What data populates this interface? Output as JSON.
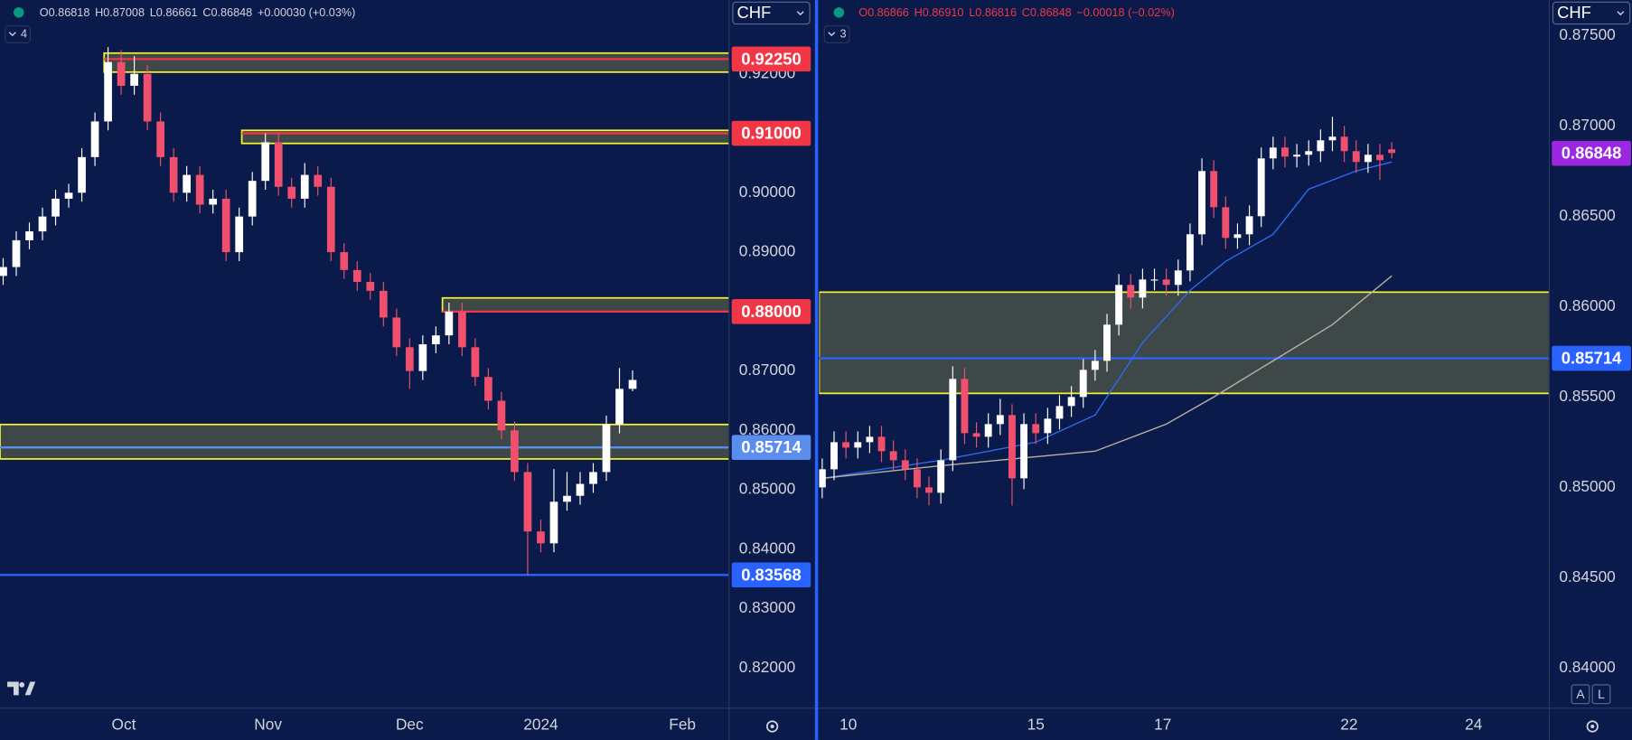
{
  "chart_data": [
    {
      "type": "candlestick",
      "currency": "CHF",
      "legend_count": 4,
      "legend": [
        "O0.86818",
        "H0.87008",
        "L0.86661",
        "C0.86848",
        "+0.00030 (+0.03%)"
      ],
      "legend_color": "#d1d4dc",
      "up_color": "#ffffff",
      "down_color": "#f0506e",
      "xlim": [
        -0.24,
        55.32
      ],
      "ylim": [
        0.81334,
        0.93243
      ],
      "xticks": [
        {
          "value": 9.2,
          "label": "Oct"
        },
        {
          "value": 20.2,
          "label": "Nov"
        },
        {
          "value": 31.0,
          "label": "Dec"
        },
        {
          "value": 41.0,
          "label": "2024"
        },
        {
          "value": 51.8,
          "label": "Feb"
        }
      ],
      "yticks": [
        {
          "value": 0.92,
          "label": "0.92000"
        },
        {
          "value": 0.9,
          "label": "0.90000"
        },
        {
          "value": 0.89,
          "label": "0.89000"
        },
        {
          "value": 0.87,
          "label": "0.87000"
        },
        {
          "value": 0.86,
          "label": "0.86000"
        },
        {
          "value": 0.85,
          "label": "0.85000"
        },
        {
          "value": 0.84,
          "label": "0.84000"
        },
        {
          "value": 0.83,
          "label": "0.83000"
        },
        {
          "value": 0.82,
          "label": "0.82000"
        }
      ],
      "zone_color": "#f5f52a",
      "zones": [
        {
          "top": 0.9235,
          "bottom": 0.9203,
          "start": 7.7
        },
        {
          "top": 0.9105,
          "bottom": 0.9083,
          "start": 18.2
        },
        {
          "top": 0.8823,
          "bottom": 0.88,
          "start": 33.5
        },
        {
          "top": 0.861,
          "bottom": 0.8552
        }
      ],
      "levels": [
        {
          "value": 0.9225,
          "label": "0.92250",
          "color": "#f23645",
          "start": 7.7,
          "line": true
        },
        {
          "value": 0.91,
          "label": "0.91000",
          "color": "#f23645",
          "start": 18.2,
          "line": true
        },
        {
          "value": 0.88,
          "label": "0.88000",
          "color": "#f23645",
          "start": 33.5,
          "line": true
        },
        {
          "value": 0.85714,
          "label": "0.85714",
          "color": "#5b8def",
          "line": true
        },
        {
          "value": 0.83568,
          "label": "0.83568",
          "color": "#2962ff",
          "line": true
        }
      ],
      "ohlc": [
        [
          0.886,
          0.889,
          0.8845,
          0.8875
        ],
        [
          0.8875,
          0.8935,
          0.886,
          0.892
        ],
        [
          0.892,
          0.895,
          0.8905,
          0.8935
        ],
        [
          0.8935,
          0.8975,
          0.892,
          0.896
        ],
        [
          0.896,
          0.9005,
          0.8945,
          0.899
        ],
        [
          0.899,
          0.9015,
          0.8975,
          0.9
        ],
        [
          0.9,
          0.9075,
          0.8985,
          0.906
        ],
        [
          0.906,
          0.9135,
          0.9045,
          0.912
        ],
        [
          0.912,
          0.9245,
          0.9105,
          0.922
        ],
        [
          0.922,
          0.924,
          0.9165,
          0.918
        ],
        [
          0.918,
          0.923,
          0.9165,
          0.92
        ],
        [
          0.92,
          0.9215,
          0.9105,
          0.912
        ],
        [
          0.912,
          0.9135,
          0.9045,
          0.906
        ],
        [
          0.906,
          0.9075,
          0.8985,
          0.9
        ],
        [
          0.9,
          0.9045,
          0.8985,
          0.903
        ],
        [
          0.903,
          0.9045,
          0.8965,
          0.898
        ],
        [
          0.898,
          0.9005,
          0.8965,
          0.899
        ],
        [
          0.899,
          0.9005,
          0.8885,
          0.89
        ],
        [
          0.89,
          0.8975,
          0.8885,
          0.896
        ],
        [
          0.896,
          0.9035,
          0.8945,
          0.902
        ],
        [
          0.902,
          0.91,
          0.9005,
          0.9085
        ],
        [
          0.9085,
          0.91,
          0.8995,
          0.901
        ],
        [
          0.901,
          0.9025,
          0.8975,
          0.899
        ],
        [
          0.899,
          0.905,
          0.8975,
          0.903
        ],
        [
          0.903,
          0.9045,
          0.8995,
          0.901
        ],
        [
          0.901,
          0.9025,
          0.8885,
          0.89
        ],
        [
          0.89,
          0.8915,
          0.8855,
          0.887
        ],
        [
          0.887,
          0.8885,
          0.8835,
          0.885
        ],
        [
          0.885,
          0.8865,
          0.882,
          0.8835
        ],
        [
          0.8835,
          0.885,
          0.8775,
          0.879
        ],
        [
          0.879,
          0.8805,
          0.8725,
          0.874
        ],
        [
          0.874,
          0.8755,
          0.867,
          0.87
        ],
        [
          0.87,
          0.876,
          0.8685,
          0.8745
        ],
        [
          0.8745,
          0.8775,
          0.873,
          0.876
        ],
        [
          0.876,
          0.8815,
          0.8745,
          0.88
        ],
        [
          0.88,
          0.8815,
          0.8725,
          0.874
        ],
        [
          0.874,
          0.8755,
          0.8675,
          0.869
        ],
        [
          0.869,
          0.8705,
          0.8635,
          0.865
        ],
        [
          0.865,
          0.8665,
          0.8585,
          0.86
        ],
        [
          0.86,
          0.8615,
          0.8515,
          0.853
        ],
        [
          0.853,
          0.8545,
          0.8357,
          0.843
        ],
        [
          0.843,
          0.845,
          0.8395,
          0.841
        ],
        [
          0.841,
          0.8535,
          0.8395,
          0.848
        ],
        [
          0.848,
          0.853,
          0.8465,
          0.849
        ],
        [
          0.849,
          0.853,
          0.8475,
          0.851
        ],
        [
          0.851,
          0.8545,
          0.8495,
          0.853
        ],
        [
          0.853,
          0.8625,
          0.8515,
          0.861
        ],
        [
          0.861,
          0.8705,
          0.8595,
          0.867
        ],
        [
          0.867,
          0.8701,
          0.8666,
          0.8685
        ]
      ],
      "lines": []
    },
    {
      "type": "candlestick",
      "currency": "CHF",
      "legend_count": 3,
      "legend": [
        "O0.86866",
        "H0.86910",
        "L0.86816",
        "C0.86848",
        "−0.00018 (−0.02%)"
      ],
      "legend_color": "#f23645",
      "up_color": "#ffffff",
      "down_color": "#f0506e",
      "xlim": [
        -0.26,
        61.23
      ],
      "ylim": [
        0.83781,
        0.87696
      ],
      "xticks": [
        {
          "value": 2.2,
          "label": "10"
        },
        {
          "value": 18.0,
          "label": "15"
        },
        {
          "value": 28.7,
          "label": "17"
        },
        {
          "value": 44.4,
          "label": "22"
        },
        {
          "value": 54.9,
          "label": "24"
        }
      ],
      "yticks": [
        {
          "value": 0.875,
          "label": "0.87500"
        },
        {
          "value": 0.87,
          "label": "0.87000"
        },
        {
          "value": 0.865,
          "label": "0.86500"
        },
        {
          "value": 0.86,
          "label": "0.86000"
        },
        {
          "value": 0.855,
          "label": "0.85500"
        },
        {
          "value": 0.85,
          "label": "0.85000"
        },
        {
          "value": 0.845,
          "label": "0.84500"
        },
        {
          "value": 0.84,
          "label": "0.84000"
        }
      ],
      "zone_color": "#f5f52a",
      "zones": [
        {
          "top": 0.8608,
          "bottom": 0.8552
        }
      ],
      "levels": [
        {
          "value": 0.86848,
          "label": "0.86848",
          "color": "#9c27e0",
          "line": false
        },
        {
          "value": 0.85714,
          "label": "0.85714",
          "color": "#2962ff",
          "line": true
        }
      ],
      "ohlc": [
        [
          0.85,
          0.8516,
          0.8494,
          0.851
        ],
        [
          0.851,
          0.8531,
          0.8504,
          0.8525
        ],
        [
          0.8525,
          0.8531,
          0.8516,
          0.8522
        ],
        [
          0.8522,
          0.8531,
          0.8516,
          0.8525
        ],
        [
          0.8525,
          0.8534,
          0.8519,
          0.8528
        ],
        [
          0.8528,
          0.8534,
          0.8514,
          0.852
        ],
        [
          0.852,
          0.8526,
          0.8509,
          0.8515
        ],
        [
          0.8515,
          0.8521,
          0.8504,
          0.851
        ],
        [
          0.851,
          0.8516,
          0.8494,
          0.85
        ],
        [
          0.85,
          0.8506,
          0.849,
          0.8497
        ],
        [
          0.8497,
          0.8521,
          0.8491,
          0.8515
        ],
        [
          0.8515,
          0.8567,
          0.8509,
          0.856
        ],
        [
          0.856,
          0.8566,
          0.8524,
          0.853
        ],
        [
          0.853,
          0.8536,
          0.8522,
          0.8528
        ],
        [
          0.8528,
          0.8541,
          0.8522,
          0.8535
        ],
        [
          0.8535,
          0.8549,
          0.8529,
          0.854
        ],
        [
          0.854,
          0.8546,
          0.849,
          0.8505
        ],
        [
          0.8505,
          0.8541,
          0.8499,
          0.8535
        ],
        [
          0.8535,
          0.8541,
          0.8524,
          0.853
        ],
        [
          0.853,
          0.8544,
          0.8524,
          0.8538
        ],
        [
          0.8538,
          0.8551,
          0.8532,
          0.8545
        ],
        [
          0.8545,
          0.8556,
          0.8539,
          0.855
        ],
        [
          0.855,
          0.8571,
          0.8544,
          0.8565
        ],
        [
          0.8565,
          0.8576,
          0.8559,
          0.857
        ],
        [
          0.857,
          0.8596,
          0.8564,
          0.859
        ],
        [
          0.859,
          0.8618,
          0.8584,
          0.8612
        ],
        [
          0.8612,
          0.8618,
          0.8599,
          0.8605
        ],
        [
          0.8605,
          0.8621,
          0.8599,
          0.8615
        ],
        [
          0.8615,
          0.8621,
          0.8609,
          0.8615
        ],
        [
          0.8615,
          0.8621,
          0.8606,
          0.8612
        ],
        [
          0.8612,
          0.8626,
          0.8606,
          0.862
        ],
        [
          0.862,
          0.8646,
          0.8614,
          0.864
        ],
        [
          0.864,
          0.8682,
          0.8634,
          0.8675
        ],
        [
          0.8675,
          0.8681,
          0.8649,
          0.8655
        ],
        [
          0.8655,
          0.8661,
          0.8632,
          0.8638
        ],
        [
          0.8638,
          0.8646,
          0.8632,
          0.864
        ],
        [
          0.864,
          0.8656,
          0.8634,
          0.865
        ],
        [
          0.865,
          0.8688,
          0.8644,
          0.8682
        ],
        [
          0.8682,
          0.8694,
          0.8676,
          0.8688
        ],
        [
          0.8688,
          0.8694,
          0.8677,
          0.8683
        ],
        [
          0.8683,
          0.869,
          0.8677,
          0.8684
        ],
        [
          0.8684,
          0.8692,
          0.8678,
          0.8686
        ],
        [
          0.8686,
          0.8698,
          0.868,
          0.8692
        ],
        [
          0.8692,
          0.8705,
          0.8686,
          0.8694
        ],
        [
          0.8694,
          0.87,
          0.868,
          0.8686
        ],
        [
          0.8686,
          0.8692,
          0.8674,
          0.868
        ],
        [
          0.868,
          0.869,
          0.8674,
          0.8684
        ],
        [
          0.8684,
          0.869,
          0.867,
          0.8681
        ],
        [
          0.8687,
          0.8691,
          0.8682,
          0.8685
        ]
      ],
      "lines": [
        {
          "color": "#2e6bf0",
          "x": [
            0,
            10,
            18,
            23,
            27,
            31,
            34,
            38,
            41,
            45,
            48
          ],
          "values": [
            0.8505,
            0.8515,
            0.8525,
            0.854,
            0.858,
            0.8609,
            0.8625,
            0.864,
            0.8665,
            0.8675,
            0.868
          ]
        },
        {
          "color": "#b9b2a0",
          "x": [
            0,
            10,
            23,
            29,
            33,
            38,
            43,
            48
          ],
          "values": [
            0.8505,
            0.8512,
            0.852,
            0.8535,
            0.855,
            0.857,
            0.859,
            0.8617
          ]
        }
      ],
      "scale_buttons": [
        "A",
        "L"
      ]
    }
  ]
}
